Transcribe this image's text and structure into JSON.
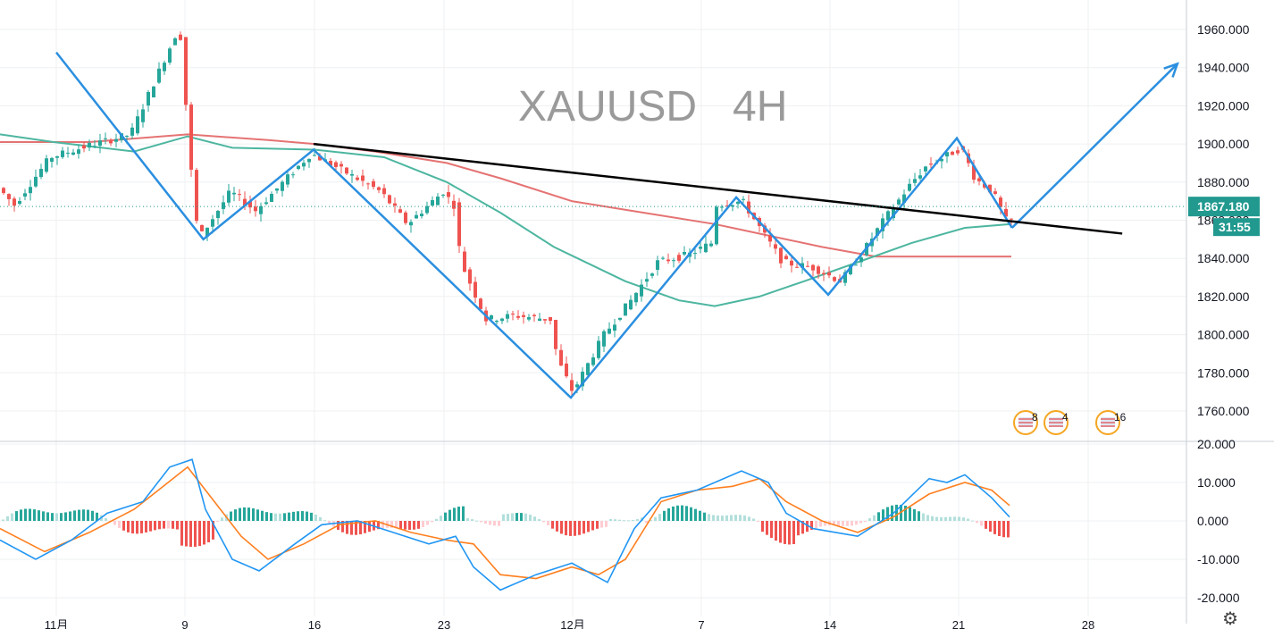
{
  "chart_data": {
    "type": "candlestick",
    "title": "XAUUSD   4H",
    "symbol": "XAUUSD",
    "timeframe": "4H",
    "colors": {
      "up": "#26a69a",
      "down": "#ef5350",
      "ma_green": "#4db6a0",
      "ma_red": "#e57373",
      "pattern": "#2b8fe0",
      "trendline": "#000000",
      "price_tag": "#22998f",
      "macd": "#2196f3",
      "signal": "#ff7f1f"
    },
    "price_axis": {
      "ylim": [
        1750,
        1965
      ],
      "ticks": [
        "1960.000",
        "1940.000",
        "1920.000",
        "1900.000",
        "1880.000",
        "1860.000",
        "1840.000",
        "1820.000",
        "1800.000",
        "1780.000",
        "1760.000"
      ]
    },
    "macd_axis": {
      "ylim": [
        -22,
        21
      ],
      "ticks": [
        "20.000",
        "10.000",
        "0.000",
        "-10.000",
        "-20.000"
      ]
    },
    "time_axis": [
      "11月",
      "9",
      "16",
      "23",
      "12月",
      "7",
      "14",
      "21",
      "28"
    ],
    "last_price": "1867.180",
    "countdown": "31:55",
    "pattern_points": [
      {
        "date": "Nov 2",
        "price": 1948
      },
      {
        "date": "Nov 10",
        "price": 1850
      },
      {
        "date": "Nov 16",
        "price": 1897
      },
      {
        "date": "Nov 30",
        "price": 1767
      },
      {
        "date": "Dec 9",
        "price": 1872
      },
      {
        "date": "Dec 14",
        "price": 1821
      },
      {
        "date": "Dec 21",
        "price": 1903
      },
      {
        "date": "Dec 24",
        "price": 1856
      },
      {
        "date": "Jan 2",
        "price": 1942
      }
    ],
    "trendline": [
      {
        "date": "Nov 16",
        "price": 1900
      },
      {
        "date": "Dec 30",
        "price": 1853
      }
    ],
    "events": [
      {
        "label": "8"
      },
      {
        "label": "4"
      },
      {
        "label": "16"
      }
    ]
  }
}
